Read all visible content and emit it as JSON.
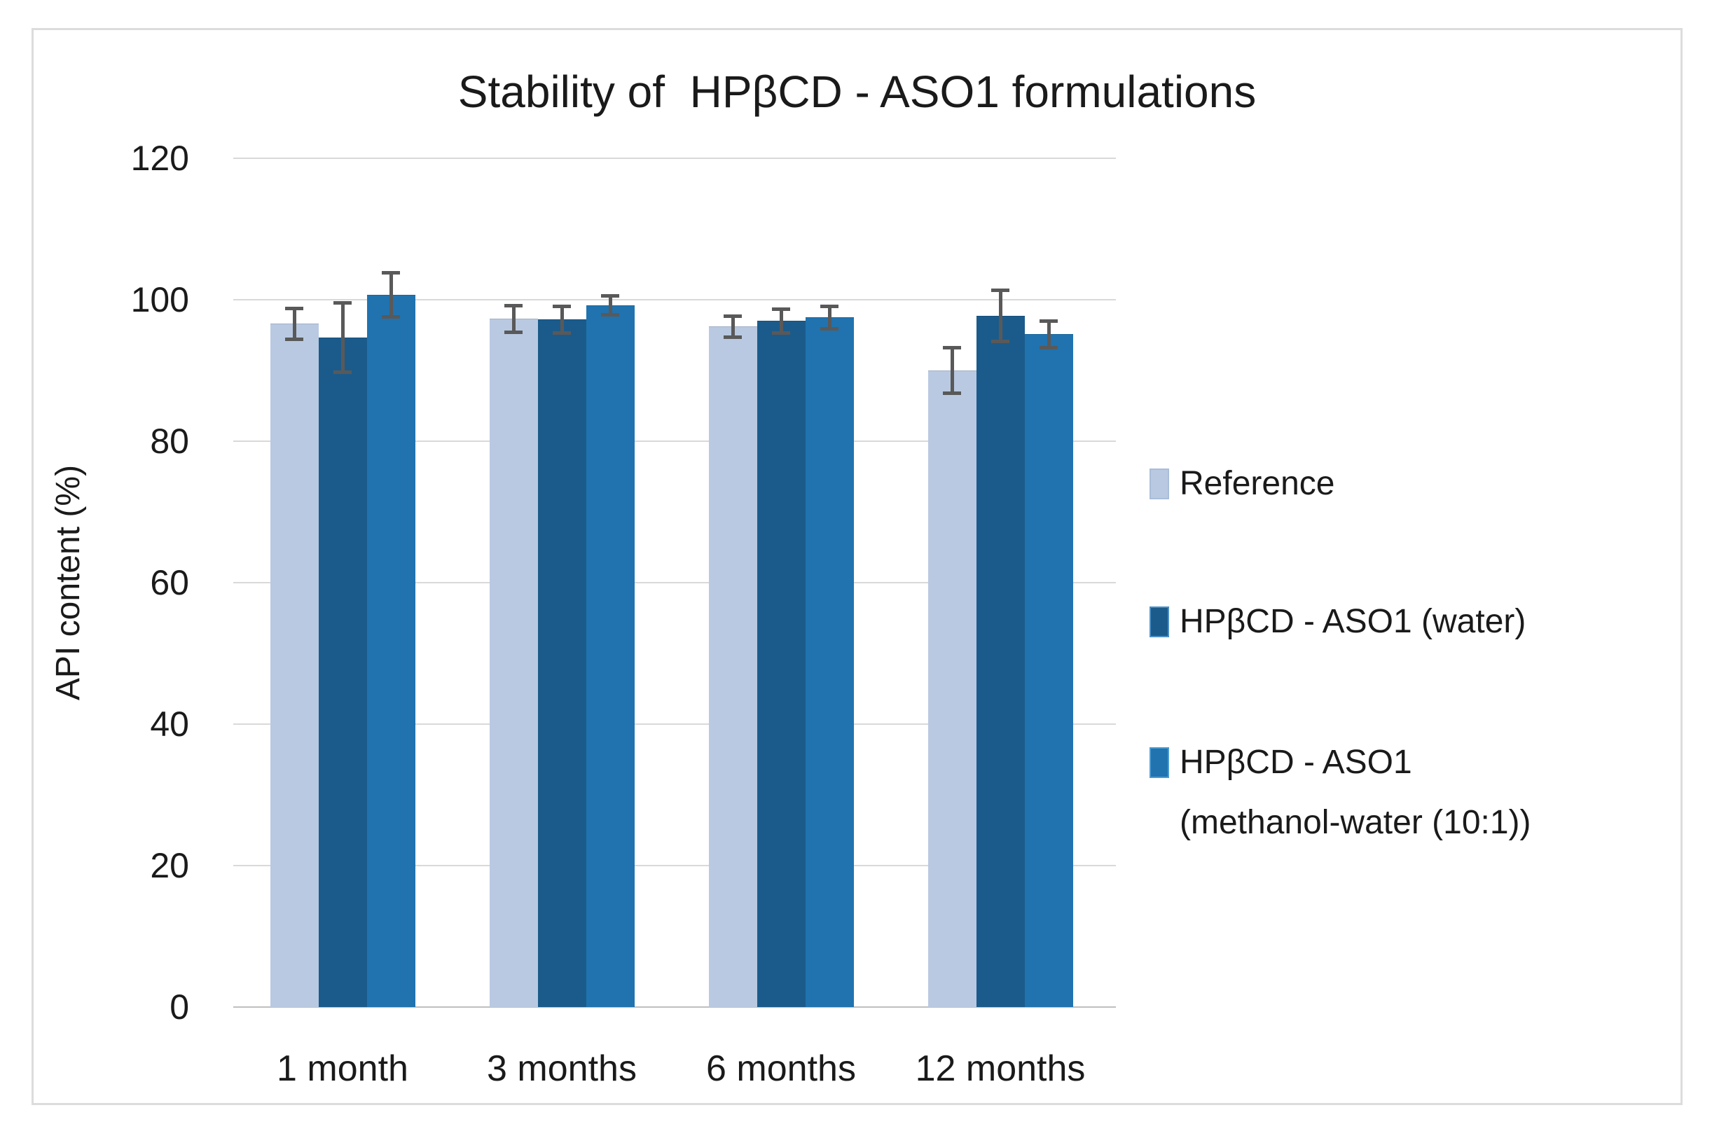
{
  "chart_data": {
    "type": "bar",
    "title": "Stability of  HPβCD - ASO1 formulations",
    "ylabel": "API content (%)",
    "xlabel": "",
    "ylim": [
      0,
      120
    ],
    "yticks": [
      120,
      100,
      80,
      60,
      40,
      20,
      0
    ],
    "categories": [
      "1 month",
      "3 months",
      "6 months",
      "12 months"
    ],
    "series": [
      {
        "name": "Reference",
        "color": "#b9c9e1",
        "border": "#a9bdd8",
        "values": [
          96.6,
          97.3,
          96.2,
          90.0
        ],
        "errors": [
          2.2,
          1.9,
          1.5,
          3.2
        ]
      },
      {
        "name": "HPβCD - ASO1 (water)",
        "color": "#1b5b8b",
        "border": "#4d8fc4",
        "values": [
          94.7,
          97.2,
          97.0,
          97.7
        ],
        "errors": [
          4.9,
          1.9,
          1.7,
          3.6
        ]
      },
      {
        "name": "HPβCD - ASO1 (methanol-water (10:1))",
        "color": "#2073af",
        "border": "#4d9bd1",
        "values": [
          100.7,
          99.2,
          97.5,
          95.1
        ],
        "errors": [
          3.1,
          1.3,
          1.6,
          1.9
        ]
      }
    ],
    "error_bar_color": "#595959",
    "gridline_color": "#d9d9d9",
    "axis_line_color": "#bfbfbf",
    "grid": true,
    "legend_position": "right"
  },
  "legend": {
    "items": [
      {
        "series": 0,
        "lines": [
          "Reference"
        ]
      },
      {
        "series": 1,
        "lines": [
          "HPβCD - ASO1 (water)"
        ]
      },
      {
        "series": 2,
        "lines": [
          "HPβCD - ASO1",
          "(methanol-water (10:1))"
        ]
      }
    ]
  }
}
